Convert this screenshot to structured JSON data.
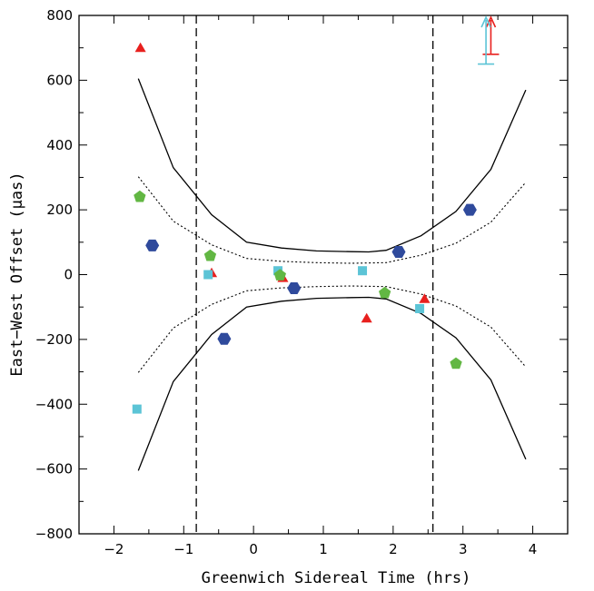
{
  "chart_data": {
    "type": "scatter",
    "xlabel": "Greenwich Sidereal Time (hrs)",
    "ylabel": "East−West Offset (μas)",
    "xlim": [
      -2.5,
      4.5
    ],
    "ylim": [
      -800,
      800
    ],
    "x_ticks": [
      -2,
      -1,
      0,
      1,
      2,
      3,
      4
    ],
    "x_tick_labels": [
      "−2",
      "−1",
      "0",
      "1",
      "2",
      "3",
      "4"
    ],
    "y_ticks": [
      -800,
      -600,
      -400,
      -200,
      0,
      200,
      400,
      600,
      800
    ],
    "y_tick_labels": [
      "−800",
      "−600",
      "−400",
      "−200",
      "0",
      "200",
      "400",
      "600",
      "800"
    ],
    "grid": false,
    "vertical_lines": [
      -0.82,
      2.57
    ],
    "curves": [
      {
        "style": "solid",
        "x": [
          -1.65,
          -1.15,
          -0.6,
          -0.1,
          0.4,
          0.9,
          1.4,
          1.65,
          1.9,
          2.4,
          2.9,
          3.4,
          3.9
        ],
        "y": [
          605,
          330,
          185,
          100,
          82,
          73,
          71,
          70,
          75,
          120,
          195,
          325,
          570
        ]
      },
      {
        "style": "solid",
        "x": [
          -1.65,
          -1.15,
          -0.6,
          -0.1,
          0.4,
          0.9,
          1.4,
          1.65,
          1.9,
          2.4,
          2.9,
          3.4,
          3.9
        ],
        "y": [
          -605,
          -330,
          -185,
          -100,
          -82,
          -73,
          -71,
          -70,
          -75,
          -120,
          -195,
          -325,
          -570
        ]
      },
      {
        "style": "dotted",
        "x": [
          -1.65,
          -1.15,
          -0.6,
          -0.1,
          0.4,
          0.9,
          1.4,
          1.9,
          2.4,
          2.9,
          3.4,
          3.9
        ],
        "y": [
          302,
          165,
          92,
          50,
          41,
          37,
          35,
          37,
          60,
          97,
          162,
          285
        ]
      },
      {
        "style": "dotted",
        "x": [
          -1.65,
          -1.15,
          -0.6,
          -0.1,
          0.4,
          0.9,
          1.4,
          1.9,
          2.4,
          2.9,
          3.4,
          3.9
        ],
        "y": [
          -302,
          -165,
          -92,
          -50,
          -41,
          -37,
          -35,
          -37,
          -60,
          -97,
          -162,
          -285
        ]
      }
    ],
    "series": [
      {
        "marker": "triangle",
        "color": "#e8201e",
        "x": [
          -1.62,
          -0.6,
          0.42,
          1.62,
          2.45
        ],
        "y": [
          700,
          5,
          -10,
          -135,
          -75
        ]
      },
      {
        "marker": "square",
        "color": "#5cc4d6",
        "x": [
          -1.67,
          -0.65,
          0.35,
          1.56,
          2.38
        ],
        "y": [
          -415,
          0,
          12,
          12,
          -105
        ]
      },
      {
        "marker": "pentagon",
        "color": "#62b743",
        "x": [
          -1.63,
          -0.62,
          0.38,
          1.88,
          2.9
        ],
        "y": [
          240,
          58,
          -2,
          -57,
          -275
        ]
      },
      {
        "marker": "hexagon",
        "color": "#2f4a9c",
        "x": [
          -1.45,
          -0.42,
          0.58,
          2.08,
          3.1
        ],
        "y": [
          90,
          -198,
          -42,
          70,
          200
        ]
      }
    ],
    "upper_limits": [
      {
        "color": "#e8201e",
        "x": 3.4,
        "y": 680
      },
      {
        "color": "#5cc4d6",
        "x": 3.33,
        "y": 650
      }
    ]
  }
}
